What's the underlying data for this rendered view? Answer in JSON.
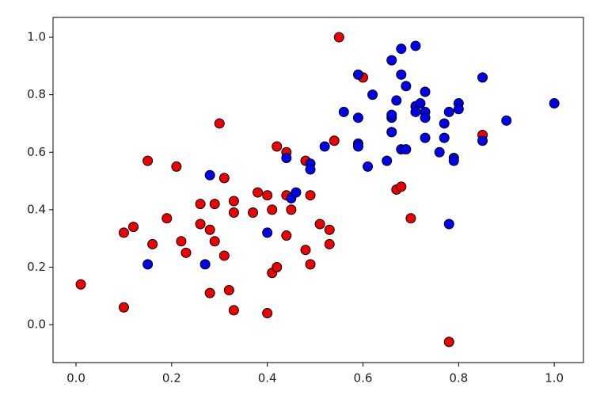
{
  "chart_data": {
    "type": "scatter",
    "xlim": [
      -0.048,
      1.061
    ],
    "ylim": [
      -0.132,
      1.069
    ],
    "xticks": [
      {
        "value": 0,
        "label": "0.0"
      },
      {
        "value": 0.2,
        "label": "0.2"
      },
      {
        "value": 0.4,
        "label": "0.4"
      },
      {
        "value": 0.6,
        "label": "0.6"
      },
      {
        "value": 0.8,
        "label": "0.8"
      },
      {
        "value": 1,
        "label": "1.0"
      }
    ],
    "yticks": [
      {
        "value": 0,
        "label": "0.0"
      },
      {
        "value": 0.2,
        "label": "0.2"
      },
      {
        "value": 0.4,
        "label": "0.4"
      },
      {
        "value": 0.6,
        "label": "0.6"
      },
      {
        "value": 0.8,
        "label": "0.8"
      },
      {
        "value": 1,
        "label": "1.0"
      }
    ],
    "edge_color": "#000000",
    "series": [
      {
        "color": "#ee0000",
        "x": [
          0.01,
          0.1,
          0.1,
          0.12,
          0.15,
          0.16,
          0.19,
          0.21,
          0.22,
          0.23,
          0.26,
          0.26,
          0.28,
          0.28,
          0.29,
          0.29,
          0.3,
          0.31,
          0.31,
          0.32,
          0.33,
          0.33,
          0.33,
          0.37,
          0.38,
          0.4,
          0.41,
          0.41,
          0.4,
          0.42,
          0.42,
          0.44,
          0.44,
          0.44,
          0.45,
          0.48,
          0.48,
          0.49,
          0.49,
          0.51,
          0.53,
          0.53,
          0.54,
          0.55,
          0.6,
          0.67,
          0.68,
          0.7,
          0.78,
          0.85
        ],
        "y": [
          0.14,
          0.32,
          0.06,
          0.34,
          0.57,
          0.28,
          0.37,
          0.55,
          0.29,
          0.25,
          0.42,
          0.35,
          0.33,
          0.11,
          0.29,
          0.42,
          0.7,
          0.51,
          0.24,
          0.12,
          0.39,
          0.43,
          0.05,
          0.39,
          0.46,
          0.45,
          0.4,
          0.18,
          0.04,
          0.2,
          0.62,
          0.6,
          0.31,
          0.45,
          0.4,
          0.57,
          0.26,
          0.21,
          0.45,
          0.35,
          0.33,
          0.28,
          0.64,
          1.0,
          0.86,
          0.47,
          0.48,
          0.37,
          -0.06,
          0.66
        ]
      },
      {
        "color": "#0000ee",
        "x": [
          0.15,
          0.27,
          0.28,
          0.4,
          0.44,
          0.45,
          0.46,
          0.49,
          0.49,
          0.52,
          0.56,
          0.59,
          0.59,
          0.59,
          0.59,
          0.61,
          0.62,
          0.65,
          0.66,
          0.66,
          0.66,
          0.66,
          0.67,
          0.68,
          0.68,
          0.68,
          0.69,
          0.69,
          0.71,
          0.71,
          0.71,
          0.72,
          0.73,
          0.73,
          0.73,
          0.73,
          0.76,
          0.77,
          0.77,
          0.78,
          0.78,
          0.79,
          0.79,
          0.8,
          0.8,
          0.85,
          0.85,
          0.9,
          1.0
        ],
        "y": [
          0.21,
          0.21,
          0.52,
          0.32,
          0.58,
          0.44,
          0.46,
          0.56,
          0.54,
          0.62,
          0.74,
          0.87,
          0.72,
          0.63,
          0.62,
          0.55,
          0.8,
          0.57,
          0.92,
          0.72,
          0.73,
          0.67,
          0.78,
          0.96,
          0.87,
          0.61,
          0.83,
          0.61,
          0.97,
          0.76,
          0.74,
          0.77,
          0.81,
          0.74,
          0.72,
          0.65,
          0.6,
          0.7,
          0.65,
          0.35,
          0.74,
          0.58,
          0.57,
          0.77,
          0.75,
          0.86,
          0.64,
          0.71,
          0.77
        ]
      }
    ]
  }
}
